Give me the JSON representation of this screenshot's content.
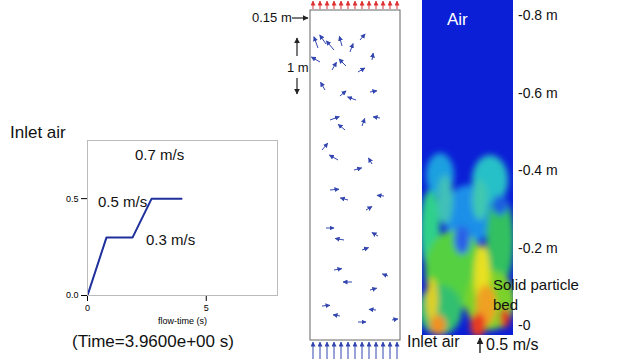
{
  "chart_data": {
    "type": "line",
    "title": "Inlet air",
    "xlabel": "flow-time (s)",
    "x": [
      0,
      0.8,
      1.9,
      2.7,
      3.96
    ],
    "values": [
      0,
      0.3,
      0.3,
      0.5,
      0.5
    ],
    "color": "#1f2f9c",
    "xlim": [
      0,
      8
    ],
    "xticks": [
      0,
      5
    ],
    "ylim": [
      0,
      0.8
    ],
    "yticks": [
      {
        "value": 0,
        "label": "0.0"
      },
      {
        "value": 0.5,
        "label": "0.5"
      }
    ],
    "annotations": [
      "0.7 m/s",
      "0.5 m/s",
      "0.3 m/s"
    ]
  },
  "caption": "(Time=3.9600e+00 s)",
  "vector_plot": {
    "width_label": "0.15 m",
    "height_label": "1 m",
    "inlet_label": "Inlet air",
    "inlet_velocity": "0.5 m/s"
  },
  "contour": {
    "top_label": "Air",
    "bottom_label": [
      "Solid particle",
      "bed"
    ],
    "axis_ticks": [
      {
        "value": -0.8,
        "label": "-0.8 m"
      },
      {
        "value": -0.6,
        "label": "-0.6 m"
      },
      {
        "value": -0.4,
        "label": "-0.4 m"
      },
      {
        "value": -0.2,
        "label": "-0.2 m"
      },
      {
        "value": 0,
        "label": "-0"
      }
    ]
  }
}
